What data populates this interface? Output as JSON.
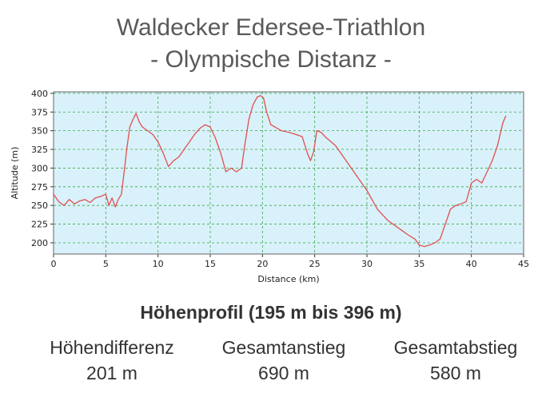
{
  "header": {
    "title_line1": "Waldecker Edersee-Triathlon",
    "title_line2": "- Olympische Distanz -"
  },
  "chart_data": {
    "type": "line",
    "xlabel": "Distance (km)",
    "ylabel": "Altitude (m)",
    "xlim": [
      0,
      45
    ],
    "ylim": [
      185,
      402
    ],
    "xticks": [
      0,
      5,
      10,
      15,
      20,
      25,
      30,
      35,
      40,
      45
    ],
    "yticks": [
      200,
      225,
      250,
      275,
      300,
      325,
      350,
      375,
      400
    ],
    "grid": true,
    "background": "#d9f1fa",
    "line_color": "#e05050",
    "grid_color": "#3aa84a",
    "series": [
      {
        "x": [
          0,
          0.5,
          1,
          1.5,
          2,
          2.5,
          3,
          3.5,
          4,
          4.5,
          5,
          5.3,
          5.6,
          5.9,
          6.2,
          6.5,
          6.8,
          7.0,
          7.3,
          7.6,
          7.9,
          8.2,
          8.5,
          9,
          9.5,
          10,
          10.5,
          11,
          11.5,
          12,
          12.5,
          13,
          13.5,
          14,
          14.5,
          15,
          15.5,
          16,
          16.5,
          17,
          17.5,
          18,
          18.3,
          18.7,
          19.1,
          19.5,
          19.8,
          20.1,
          20.4,
          20.8,
          21.2,
          21.8,
          22.5,
          23.2,
          23.8,
          24.3,
          24.6,
          24.9,
          25.2,
          25.6,
          26,
          27,
          28,
          29,
          30,
          31,
          32,
          33,
          34,
          34.6,
          35,
          35.5,
          36,
          36.5,
          37,
          37.5,
          38,
          38.5,
          39,
          39.5,
          40,
          40.5,
          41,
          41.5,
          42,
          42.5,
          43,
          43.3
        ],
        "y": [
          265,
          255,
          250,
          258,
          252,
          256,
          258,
          254,
          260,
          262,
          265,
          250,
          260,
          248,
          258,
          265,
          300,
          325,
          355,
          365,
          373,
          362,
          355,
          350,
          345,
          335,
          320,
          302,
          310,
          315,
          325,
          335,
          345,
          353,
          358,
          355,
          340,
          320,
          295,
          300,
          295,
          300,
          330,
          365,
          385,
          395,
          397,
          394,
          375,
          358,
          355,
          350,
          348,
          345,
          342,
          320,
          310,
          322,
          350,
          348,
          342,
          330,
          310,
          290,
          270,
          245,
          230,
          220,
          210,
          205,
          197,
          195,
          197,
          200,
          205,
          225,
          245,
          250,
          252,
          255,
          280,
          285,
          280,
          295,
          310,
          330,
          360,
          370
        ]
      }
    ]
  },
  "stats": {
    "heading": "Höhenprofil (195 m bis 396 m)",
    "items": [
      {
        "label": "Höhendifferenz",
        "value": "201 m"
      },
      {
        "label": "Gesamtanstieg",
        "value": "690 m"
      },
      {
        "label": "Gesamtabstieg",
        "value": "580 m"
      }
    ]
  }
}
